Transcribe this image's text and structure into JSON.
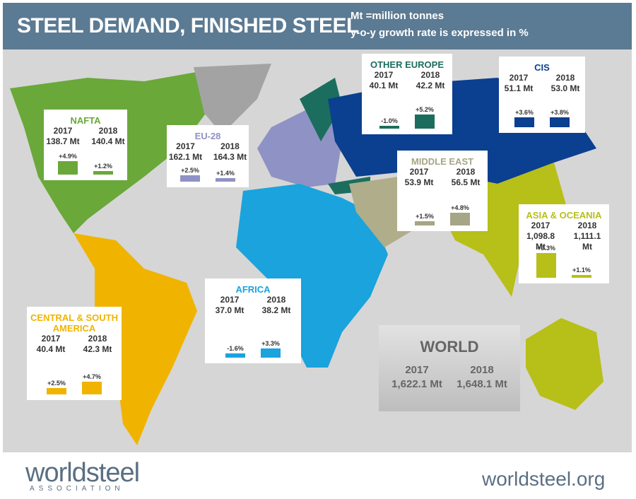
{
  "header": {
    "title": "STEEL DEMAND, FINISHED STEEL",
    "notes": [
      "Mt =million tonnes",
      "y-o-y growth rate is expressed in %"
    ]
  },
  "regions": [
    {
      "name": "NAFTA",
      "color": "#6aa83a",
      "years": [
        "2017",
        "2018"
      ],
      "volumes": [
        "138.7 Mt",
        "140.4 Mt"
      ],
      "growth": [
        4.9,
        1.2
      ],
      "growth_labels": [
        "+4.9%",
        "+1.2%"
      ]
    },
    {
      "name": "EU-28",
      "color": "#8f92c4",
      "years": [
        "2017",
        "2018"
      ],
      "volumes": [
        "162.1 Mt",
        "164.3 Mt"
      ],
      "growth": [
        2.5,
        1.4
      ],
      "growth_labels": [
        "+2.5%",
        "+1.4%"
      ]
    },
    {
      "name": "OTHER EUROPE",
      "color": "#1b6e5e",
      "years": [
        "2017",
        "2018"
      ],
      "volumes": [
        "40.1 Mt",
        "42.2 Mt"
      ],
      "growth": [
        -1.0,
        5.2
      ],
      "growth_labels": [
        "-1.0%",
        "+5.2%"
      ]
    },
    {
      "name": "CIS",
      "color": "#0b3f8f",
      "years": [
        "2017",
        "2018"
      ],
      "volumes": [
        "51.1 Mt",
        "53.0 Mt"
      ],
      "growth": [
        3.6,
        3.8
      ],
      "growth_labels": [
        "+3.6%",
        "+3.8%"
      ]
    },
    {
      "name": "MIDDLE EAST",
      "color": "#a6a585",
      "years": [
        "2017",
        "2018"
      ],
      "volumes": [
        "53.9 Mt",
        "56.5 Mt"
      ],
      "growth": [
        1.5,
        4.8
      ],
      "growth_labels": [
        "+1.5%",
        "+4.8%"
      ]
    },
    {
      "name": "ASIA & OCEANIA",
      "color": "#b7bf19",
      "years": [
        "2017",
        "2018"
      ],
      "volumes": [
        "1,098.8 Mt",
        "1,111.1 Mt"
      ],
      "growth": [
        9.3,
        1.1
      ],
      "growth_labels": [
        "+9.3%",
        "+1.1%"
      ]
    },
    {
      "name": "AFRICA",
      "color": "#1aa3dc",
      "years": [
        "2017",
        "2018"
      ],
      "volumes": [
        "37.0 Mt",
        "38.2 Mt"
      ],
      "growth": [
        -1.6,
        3.3
      ],
      "growth_labels": [
        "-1.6%",
        "+3.3%"
      ]
    },
    {
      "name": "CENTRAL & SOUTH AMERICA",
      "color": "#f0b400",
      "years": [
        "2017",
        "2018"
      ],
      "volumes": [
        "40.4 Mt",
        "42.3 Mt"
      ],
      "growth": [
        2.5,
        4.7
      ],
      "growth_labels": [
        "+2.5%",
        "+4.7%"
      ]
    }
  ],
  "world": {
    "name": "WORLD",
    "years": [
      "2017",
      "2018"
    ],
    "volumes": [
      "1,622.1 Mt",
      "1,648.1 Mt"
    ]
  },
  "footer": {
    "logo": "worldsteel",
    "logo_sub": "ASSOCIATION",
    "url": "worldsteel.org"
  }
}
